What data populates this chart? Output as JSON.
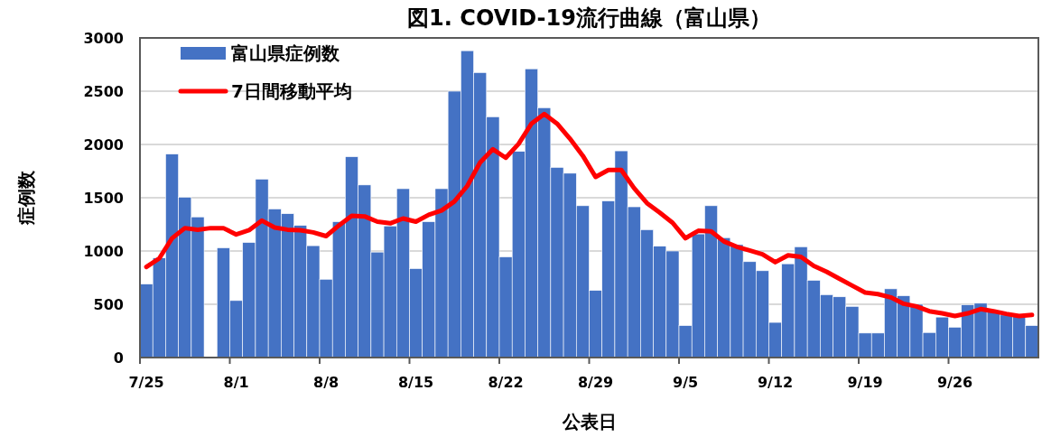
{
  "chart_data": {
    "type": "bar",
    "title": "図1. COVID-19流行曲線（富山県）",
    "xlabel": "公表日",
    "ylabel": "症例数",
    "categories": [
      "7/25",
      null,
      null,
      null,
      null,
      null,
      null,
      "8/1",
      null,
      null,
      null,
      null,
      null,
      null,
      "8/8",
      null,
      null,
      null,
      null,
      null,
      null,
      "8/15",
      null,
      null,
      null,
      null,
      null,
      null,
      "8/22",
      null,
      null,
      null,
      null,
      null,
      null,
      "8/29",
      null,
      null,
      null,
      null,
      null,
      null,
      "9/5",
      null,
      null,
      null,
      null,
      null,
      null,
      "9/12",
      null,
      null,
      null,
      null,
      null,
      null,
      "9/19",
      null,
      null,
      null,
      null,
      null,
      null,
      "9/26",
      null,
      null,
      null,
      null,
      null,
      null
    ],
    "series": [
      {
        "name": "富山県症例数",
        "color": "#4472c4",
        "values": [
          690,
          935,
          1910,
          1505,
          1320,
          null,
          1030,
          535,
          1080,
          1675,
          1395,
          1350,
          1240,
          1050,
          735,
          1275,
          1885,
          1620,
          990,
          1235,
          1585,
          835,
          1275,
          1585,
          2500,
          2880,
          2675,
          2260,
          945,
          1935,
          2710,
          2345,
          1785,
          1730,
          1425,
          630,
          1470,
          1940,
          1415,
          1200,
          1045,
          1000,
          300,
          1160,
          1425,
          1125,
          1060,
          900,
          815,
          330,
          880,
          1040,
          725,
          590,
          570,
          480,
          230,
          230,
          645,
          580,
          500,
          235,
          380,
          285,
          495,
          510,
          430,
          400,
          385,
          300
        ]
      },
      {
        "name": "7日間移動平均",
        "type": "line",
        "color": "#ff0000",
        "values": [
          850,
          930,
          1120,
          1215,
          1200,
          1215,
          1215,
          1155,
          1195,
          1285,
          1220,
          1200,
          1195,
          1175,
          1140,
          1240,
          1330,
          1325,
          1275,
          1260,
          1305,
          1275,
          1340,
          1380,
          1465,
          1610,
          1830,
          1955,
          1875,
          2005,
          2195,
          2285,
          2195,
          2055,
          1895,
          1695,
          1760,
          1760,
          1590,
          1450,
          1360,
          1265,
          1120,
          1190,
          1185,
          1090,
          1040,
          1005,
          970,
          895,
          960,
          945,
          860,
          805,
          740,
          675,
          610,
          595,
          565,
          505,
          480,
          435,
          415,
          390,
          415,
          455,
          435,
          410,
          390,
          400
        ]
      }
    ],
    "ylim": [
      0,
      3000
    ],
    "yticks": [
      0,
      500,
      1000,
      1500,
      2000,
      2500,
      3000
    ],
    "grid": "y",
    "legend": "top left",
    "line_style": "solid",
    "marker": "none"
  }
}
